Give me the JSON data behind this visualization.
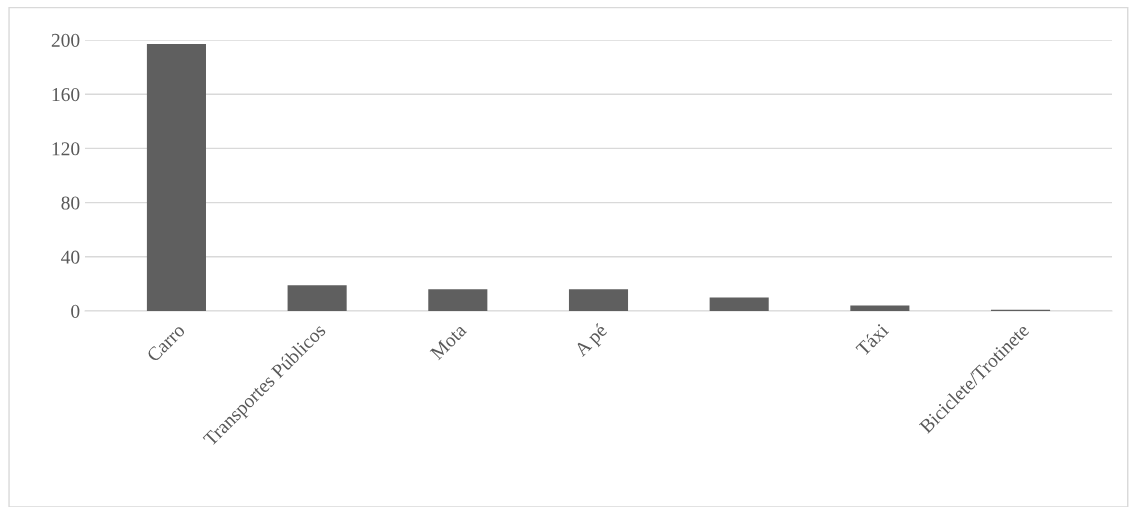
{
  "chart_data": {
    "type": "bar",
    "categories": [
      "Carro",
      "Transportes Públicos",
      "Mota",
      "A pé",
      null,
      "Táxi",
      "Biciclete/Trotinete"
    ],
    "values": [
      197,
      19,
      16,
      16,
      10,
      4,
      1
    ],
    "color": "#5f5f5f",
    "ylim": [
      0,
      200
    ],
    "yticks": [
      0,
      40,
      80,
      120,
      160,
      200
    ],
    "grid": "y"
  }
}
